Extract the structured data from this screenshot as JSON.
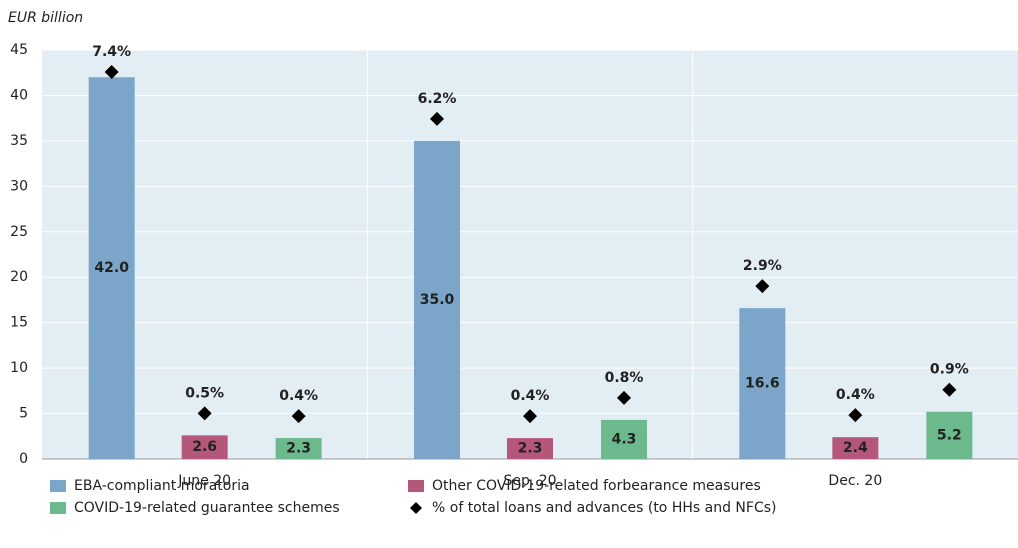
{
  "chart_data": {
    "type": "bar",
    "ylabel": "EUR billion",
    "categories": [
      "June 20",
      "Sep. 20",
      "Dec. 20"
    ],
    "series": [
      {
        "name": "EBA-compliant moratoria",
        "color": "#7ba6c9",
        "values": [
          42.0,
          35.0,
          16.6
        ],
        "value_labels": [
          "42.0",
          "35.0",
          "16.6"
        ]
      },
      {
        "name": "Other COVID-19-related forbearance measures",
        "color": "#b5577a",
        "values": [
          2.6,
          2.3,
          2.4
        ]
      },
      {
        "name": "COVID-19-related guarantee schemes",
        "color": "#6cb98d",
        "values": [
          2.3,
          4.3,
          5.2
        ]
      }
    ],
    "marker": {
      "name": "% of total loans and advances (to HHs and NFCs)",
      "color": "#000000",
      "values": [
        [
          7.4,
          0.5,
          0.4
        ],
        [
          6.2,
          0.4,
          0.8
        ],
        [
          2.9,
          0.4,
          0.9
        ]
      ],
      "value_labels": [
        [
          "7.4%",
          "0.5%",
          "0.4%"
        ],
        [
          "6.2%",
          "0.4%",
          "0.8%"
        ],
        [
          "2.9%",
          "0.4%",
          "0.9%"
        ]
      ]
    },
    "ylim": [
      0,
      45
    ],
    "yticks": [
      0,
      5,
      10,
      15,
      20,
      25,
      30,
      35,
      40,
      45
    ],
    "grid": true
  }
}
